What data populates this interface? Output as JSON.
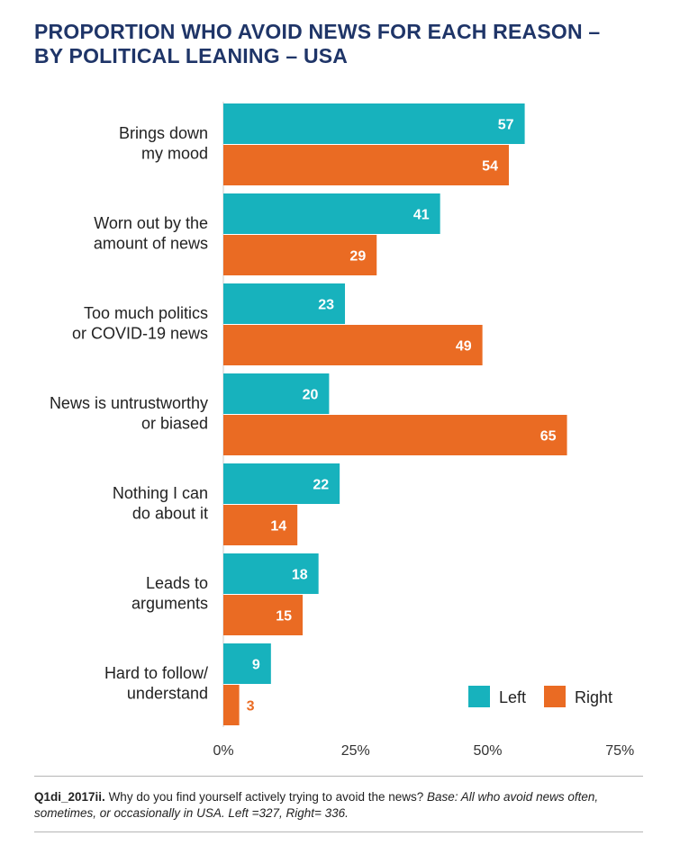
{
  "title_line1": "PROPORTION WHO AVOID NEWS FOR EACH REASON –",
  "title_line2": "BY POLITICAL LEANING – USA",
  "colors": {
    "left": "#17b2bd",
    "right": "#ea6b23",
    "title": "#1f3568",
    "right_label_outside": "#ea6b23"
  },
  "chart_data": {
    "type": "bar",
    "orientation": "horizontal",
    "title": "PROPORTION WHO AVOID NEWS FOR EACH REASON – BY POLITICAL LEANING – USA",
    "xlim": [
      0,
      75
    ],
    "xticks": [
      "0%",
      "25%",
      "50%",
      "75%"
    ],
    "xtick_values": [
      0,
      25,
      50,
      75
    ],
    "categories": [
      [
        "Brings down",
        "my mood"
      ],
      [
        "Worn out by the",
        "amount of news"
      ],
      [
        "Too much politics",
        "or COVID-19 news"
      ],
      [
        "News is untrustworthy",
        "or biased"
      ],
      [
        "Nothing I can",
        "do about it"
      ],
      [
        "Leads to",
        "arguments"
      ],
      [
        "Hard to follow/",
        "understand"
      ]
    ],
    "series": [
      {
        "name": "Left",
        "values": [
          57,
          41,
          23,
          20,
          22,
          18,
          9
        ]
      },
      {
        "name": "Right",
        "values": [
          54,
          29,
          49,
          65,
          14,
          15,
          3
        ]
      }
    ],
    "legend": {
      "position": "bottom-right",
      "entries": [
        "Left",
        "Right"
      ]
    }
  },
  "footnote": {
    "question_id": "Q1di_2017ii.",
    "question_text": " Why do you find yourself actively trying to avoid the news? ",
    "base_text": "Base: All who avoid news often, sometimes, or occasionally in USA. Left =327, Right= 336."
  }
}
